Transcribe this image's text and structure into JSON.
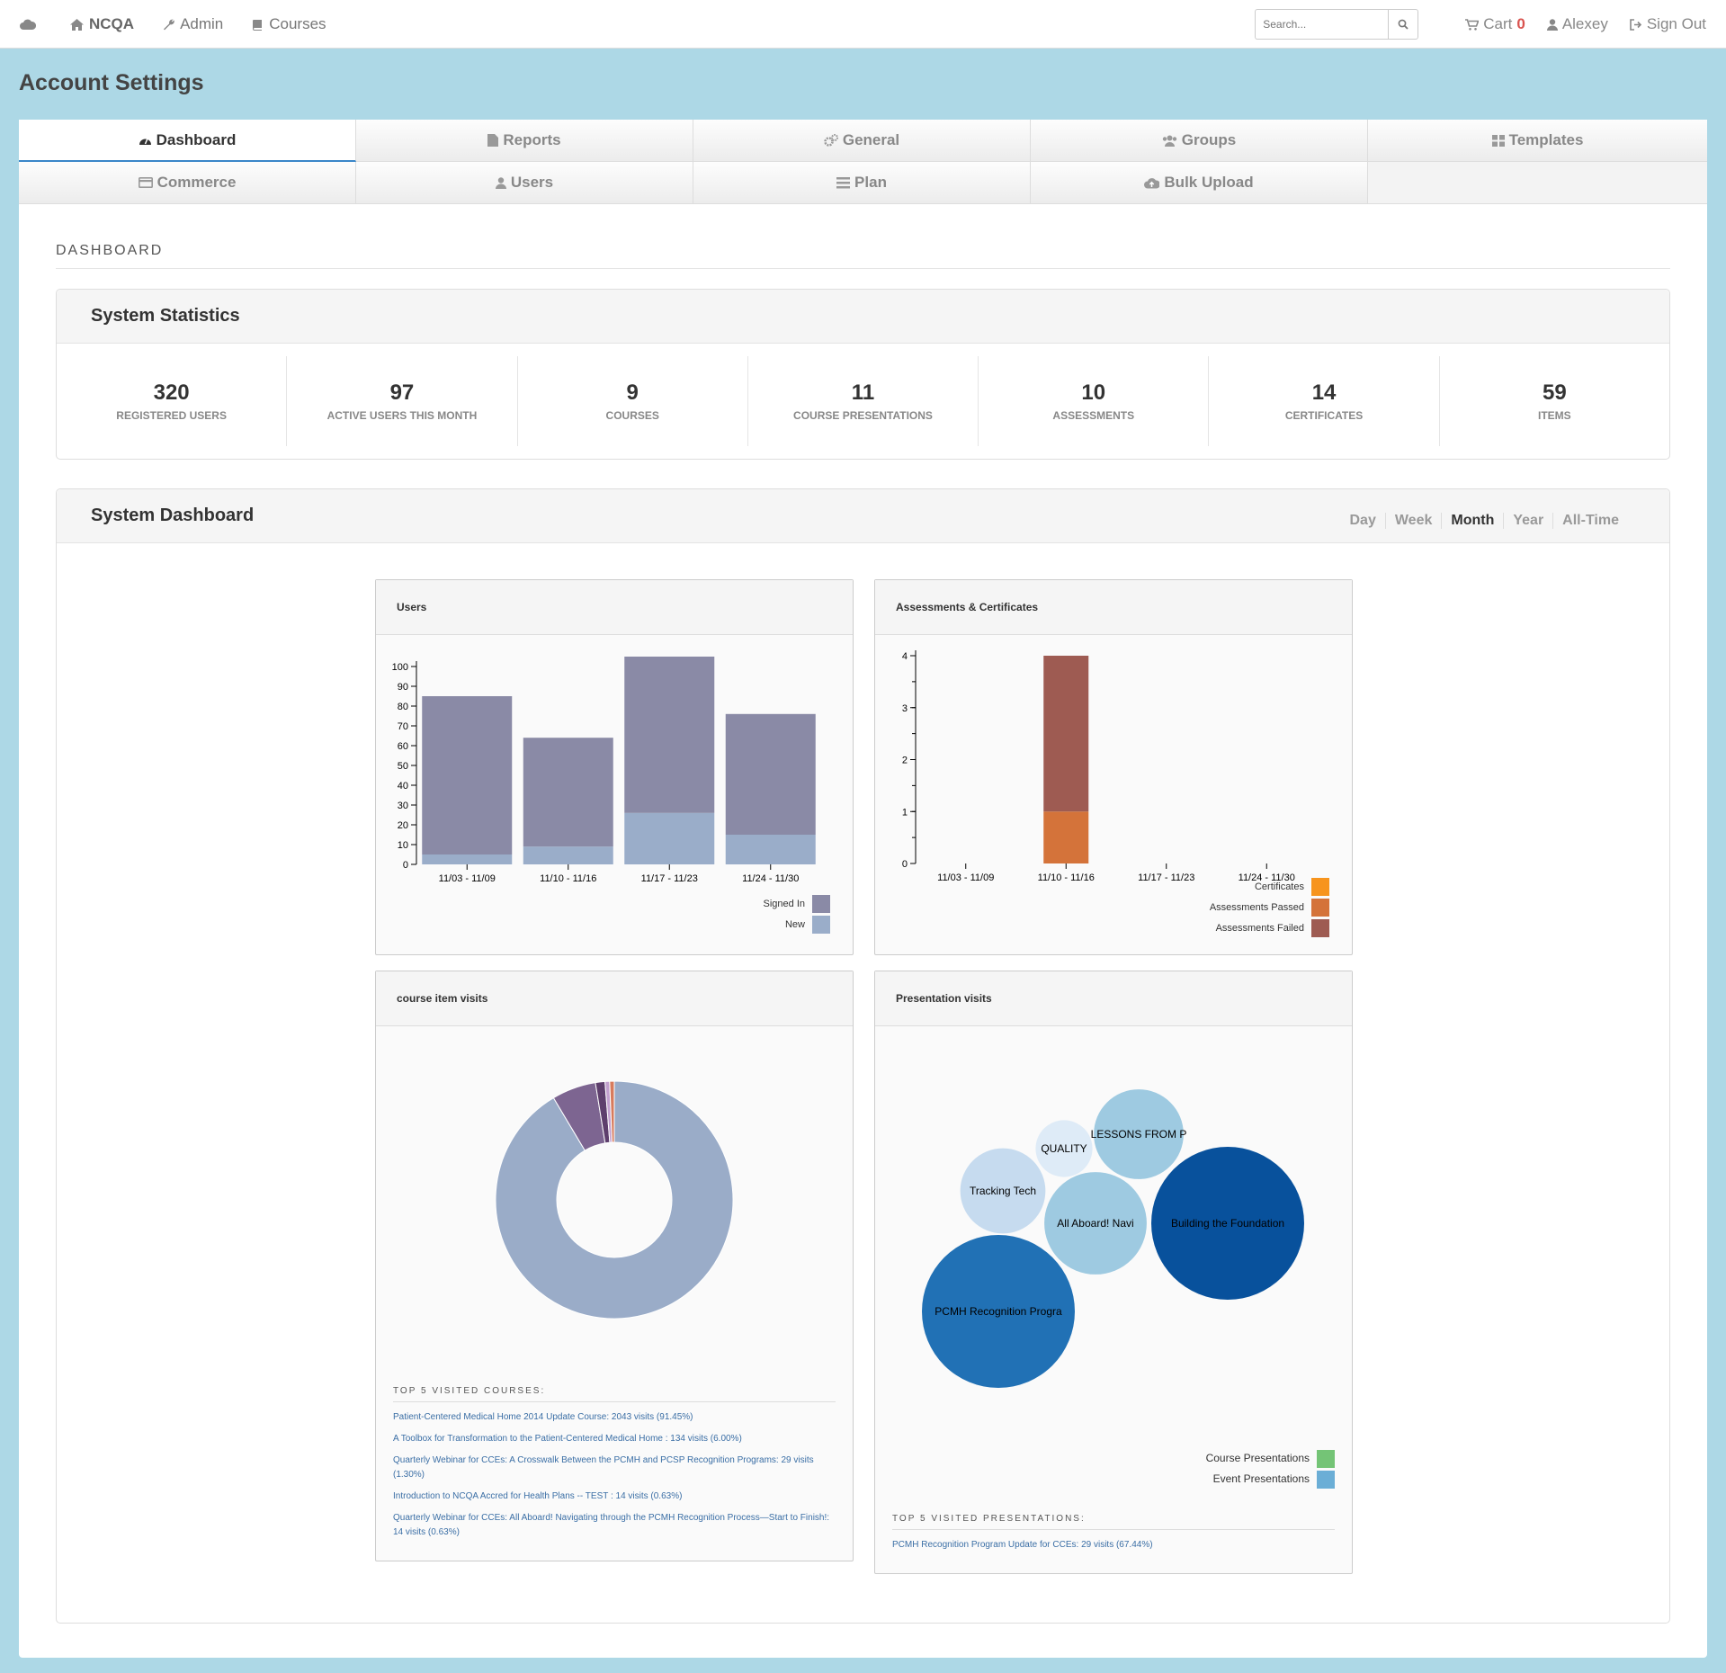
{
  "nav": {
    "brand": "NCQA",
    "admin": "Admin",
    "courses": "Courses",
    "search_placeholder": "Search...",
    "cart_label": "Cart",
    "cart_count": "0",
    "user": "Alexey",
    "signout": "Sign Out"
  },
  "page_title": "Account Settings",
  "tabs": [
    {
      "label": "Dashboard",
      "icon": "dashboard-icon"
    },
    {
      "label": "Reports",
      "icon": "file-icon"
    },
    {
      "label": "General",
      "icon": "cogs-icon"
    },
    {
      "label": "Groups",
      "icon": "users-icon"
    },
    {
      "label": "Templates",
      "icon": "grid-icon"
    },
    {
      "label": "Commerce",
      "icon": "credit-card-icon"
    },
    {
      "label": "Users",
      "icon": "user-icon"
    },
    {
      "label": "Plan",
      "icon": "list-icon"
    },
    {
      "label": "Bulk Upload",
      "icon": "cloud-upload-icon"
    }
  ],
  "dashboard_header": "DASHBOARD",
  "stats_panel": {
    "title": "System Statistics",
    "items": [
      {
        "value": "320",
        "label": "REGISTERED USERS"
      },
      {
        "value": "97",
        "label": "ACTIVE USERS THIS MONTH"
      },
      {
        "value": "9",
        "label": "COURSES"
      },
      {
        "value": "11",
        "label": "COURSE PRESENTATIONS"
      },
      {
        "value": "10",
        "label": "ASSESSMENTS"
      },
      {
        "value": "14",
        "label": "CERTIFICATES"
      },
      {
        "value": "59",
        "label": "ITEMS"
      }
    ]
  },
  "dashboard_panel": {
    "title": "System Dashboard",
    "ranges": [
      "Day",
      "Week",
      "Month",
      "Year",
      "All-Time"
    ],
    "active_range": "Month"
  },
  "chart_data": [
    {
      "type": "bar",
      "title": "Users",
      "stacked": true,
      "categories": [
        "11/03 - 11/09",
        "11/10 - 11/16",
        "11/17 - 11/23",
        "11/24 - 11/30"
      ],
      "series": [
        {
          "name": "New",
          "values": [
            5,
            9,
            26,
            15
          ],
          "color": "#9aadc9"
        },
        {
          "name": "Signed In",
          "values": [
            80,
            55,
            79,
            61
          ],
          "color": "#8a8aa6"
        }
      ],
      "ylim": [
        0,
        100
      ],
      "yticks": [
        0,
        10,
        20,
        30,
        40,
        50,
        60,
        70,
        80,
        90,
        100
      ],
      "legend": "bottom-right"
    },
    {
      "type": "bar",
      "title": "Assessments & Certificates",
      "stacked": true,
      "categories": [
        "11/03 - 11/09",
        "11/10 - 11/16",
        "11/17 - 11/23",
        "11/24 - 11/30"
      ],
      "series": [
        {
          "name": "Certificates",
          "values": [
            0,
            0,
            0,
            0
          ],
          "color": "#f7941d"
        },
        {
          "name": "Assessments Passed",
          "values": [
            0,
            1,
            0,
            0
          ],
          "color": "#d4733a"
        },
        {
          "name": "Assessments Failed",
          "values": [
            0,
            3,
            0,
            0
          ],
          "color": "#9e5b52"
        }
      ],
      "ylim": [
        0,
        4
      ],
      "yticks": [
        0,
        1,
        2,
        3,
        4
      ],
      "legend": "bottom-right"
    },
    {
      "type": "pie",
      "title": "course item visits",
      "donut": true,
      "labels": [
        "Patient-Centered Medical Home 2014 Update Course",
        "A Toolbox for Transformation to the Patient-Centered Medical Home",
        "Quarterly Webinar for CCEs: A Crosswalk Between the PCMH and PCSP Recognition Programs",
        "Introduction to NCQA Accred for Health Plans -- TEST",
        "Quarterly Webinar for CCEs: All Aboard! Navigating through the PCMH Recognition Process—Start to Finish!"
      ],
      "values": [
        2043,
        134,
        29,
        14,
        14
      ],
      "colors": [
        "#9aacc8",
        "#7d6591",
        "#5e3f6d",
        "#c2a0cf",
        "#d77b5d"
      ]
    },
    {
      "type": "bubble",
      "title": "Presentation visits",
      "labels": [
        "PCMH Recognition Progra",
        "Building the Foundation",
        "All Aboard! Navi",
        "Tracking Tech",
        "LESSONS FROM P",
        "QUALITY"
      ],
      "values": [
        29,
        29,
        13,
        9,
        10,
        4
      ],
      "colors": [
        "#2171b5",
        "#08519c",
        "#9ecae1",
        "#c6dbef",
        "#9ecae1",
        "#deebf7"
      ],
      "legend": [
        "Course Presentations",
        "Event Presentations"
      ],
      "legend_colors": [
        "#74c476",
        "#6baed6"
      ]
    }
  ],
  "course_visits": {
    "top_heading": "TOP 5 VISITED COURSES:",
    "links": [
      "Patient-Centered Medical Home 2014 Update Course: 2043 visits (91.45%)",
      "A Toolbox for Transformation to the Patient-Centered Medical Home : 134 visits (6.00%)",
      "Quarterly Webinar for CCEs: A Crosswalk Between the PCMH and PCSP Recognition Programs: 29 visits (1.30%)",
      "Introduction to NCQA Accred for Health Plans -- TEST : 14 visits (0.63%)",
      "Quarterly Webinar for CCEs: All Aboard! Navigating through the PCMH Recognition Process—Start to Finish!: 14 visits (0.63%)"
    ]
  },
  "presentation_visits": {
    "top_heading": "TOP 5 VISITED PRESENTATIONS:",
    "links": [
      "PCMH Recognition Program Update for CCEs: 29 visits (67.44%)"
    ]
  }
}
